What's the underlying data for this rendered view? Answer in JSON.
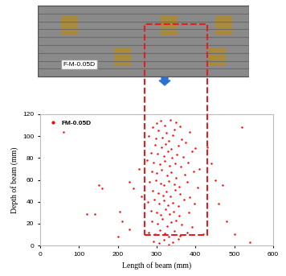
{
  "chart_data": {
    "type": "scatter",
    "xlabel": "Length of beam (mm)",
    "ylabel": "Depth of beam (mm)",
    "xlim": [
      0,
      600
    ],
    "xticks": [
      0,
      100,
      200,
      300,
      400,
      500,
      600
    ],
    "ylim": [
      0,
      120
    ],
    "yticks": [
      0,
      20,
      40,
      60,
      80,
      100,
      120
    ],
    "grid": false,
    "legend": "upper left",
    "series": [
      {
        "name": "FM-0.05D",
        "color": "#ff0000",
        "marker": "o",
        "x": [
          300,
          310,
          320,
          290,
          335,
          350,
          305,
          325,
          345,
          360,
          280,
          298,
          315,
          330,
          342,
          365,
          385,
          295,
          312,
          322,
          338,
          355,
          375,
          400,
          285,
          303,
          318,
          328,
          340,
          352,
          368,
          390,
          275,
          292,
          308,
          320,
          334,
          348,
          362,
          380,
          410,
          288,
          300,
          313,
          326,
          337,
          350,
          372,
          395,
          282,
          297,
          310,
          319,
          331,
          345,
          358,
          378,
          405,
          290,
          305,
          316,
          324,
          336,
          347,
          360,
          385,
          278,
          294,
          307,
          318,
          329,
          341,
          355,
          370,
          398,
          285,
          299,
          311,
          323,
          333,
          344,
          357,
          382,
          288,
          302,
          314,
          326,
          338,
          350,
          365,
          392,
          280,
          296,
          309,
          320,
          332,
          346,
          360,
          378,
          292,
          306,
          318,
          330,
          342,
          356,
          60,
          150,
          160,
          120,
          140,
          205,
          210,
          230,
          240,
          200,
          450,
          460,
          480,
          520,
          540,
          500,
          470,
          430,
          440,
          255,
          260,
          420,
          230
        ],
        "values": [
          112,
          114,
          110,
          108,
          115,
          113,
          105,
          103,
          106,
          109,
          100,
          98,
          99,
          96,
          101,
          97,
          104,
          92,
          90,
          93,
          88,
          91,
          94,
          89,
          85,
          84,
          82,
          86,
          80,
          83,
          81,
          86,
          78,
          76,
          74,
          77,
          73,
          75,
          72,
          76,
          70,
          68,
          66,
          69,
          64,
          67,
          62,
          65,
          68,
          58,
          60,
          57,
          55,
          59,
          56,
          54,
          58,
          53,
          50,
          48,
          46,
          49,
          45,
          51,
          47,
          44,
          40,
          42,
          38,
          41,
          37,
          39,
          36,
          42,
          38,
          32,
          30,
          28,
          33,
          29,
          31,
          27,
          30,
          22,
          20,
          24,
          18,
          21,
          23,
          19,
          17,
          12,
          10,
          14,
          11,
          8,
          13,
          9,
          12,
          4,
          2,
          5,
          1,
          3,
          6,
          104,
          55,
          52,
          29,
          29,
          31,
          22,
          58,
          52,
          8,
          60,
          38,
          22,
          108,
          3,
          10,
          55,
          90,
          75,
          70,
          45,
          10,
          15
        ]
      }
    ]
  },
  "photo": {
    "label": "F-M-0.05D"
  }
}
